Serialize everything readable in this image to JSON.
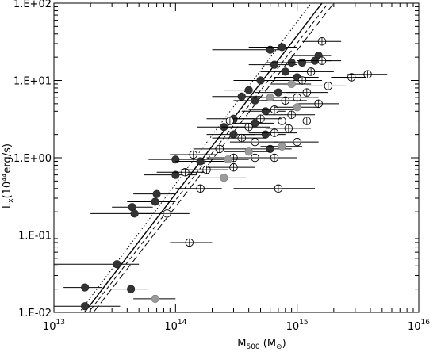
{
  "chart_data": {
    "type": "scatter",
    "x_scale": "log",
    "y_scale": "log",
    "xlim": [
      10000000000000.0,
      1e+16
    ],
    "ylim": [
      0.01,
      100
    ],
    "grid": false,
    "xlabel_main": "M",
    "xlabel_sub": "500",
    "xlabel_unit": " (M",
    "xlabel_unit_sub": "⊙",
    "xlabel_close": ")",
    "ylabel_main": "L",
    "ylabel_sub": "x",
    "ylabel_unit": "(10",
    "ylabel_exp": "44",
    "ylabel_tail": "erg/s)",
    "x_ticks": [
      {
        "value": 10000000000000.0,
        "base": "10",
        "exp": "13"
      },
      {
        "value": 100000000000000.0,
        "base": "10",
        "exp": "14"
      },
      {
        "value": 1000000000000000.0,
        "base": "10",
        "exp": "15"
      },
      {
        "value": 1e+16,
        "base": "10",
        "exp": "16"
      }
    ],
    "y_ticks": [
      {
        "value": 100,
        "label": "1.E+02"
      },
      {
        "value": 10,
        "label": "1.E+01"
      },
      {
        "value": 1,
        "label": "1.E+00"
      },
      {
        "value": 0.1,
        "label": "1.E-01"
      },
      {
        "value": 0.01,
        "label": "1.E-02"
      }
    ],
    "series": [
      {
        "marker": "filled-dark",
        "color": "#333333",
        "points": [
          {
            "x": 600000000000000.0,
            "y": 25,
            "xlo": 200000000000000.0,
            "xhi": 750000000000000.0
          },
          {
            "x": 750000000000000.0,
            "y": 27,
            "xlo": 400000000000000.0,
            "xhi": 1000000000000000.0
          },
          {
            "x": 1500000000000000.0,
            "y": 21,
            "xlo": 900000000000000.0,
            "xhi": 1900000000000000.0
          },
          {
            "x": 650000000000000.0,
            "y": 16,
            "xlo": 400000000000000.0,
            "xhi": 1000000000000000.0
          },
          {
            "x": 900000000000000.0,
            "y": 17,
            "xlo": 550000000000000.0,
            "xhi": 1400000000000000.0
          },
          {
            "x": 1100000000000000.0,
            "y": 17,
            "xlo": 700000000000000.0,
            "xhi": 1500000000000000.0
          },
          {
            "x": 1400000000000000.0,
            "y": 18,
            "xlo": 1000000000000000.0,
            "xhi": 1900000000000000.0
          },
          {
            "x": 800000000000000.0,
            "y": 13,
            "xlo": 500000000000000.0,
            "xhi": 1200000000000000.0
          },
          {
            "x": 1000000000000000.0,
            "y": 11,
            "xlo": 650000000000000.0,
            "xhi": 1500000000000000.0
          },
          {
            "x": 500000000000000.0,
            "y": 10,
            "xlo": 300000000000000.0,
            "xhi": 700000000000000.0
          },
          {
            "x": 400000000000000.0,
            "y": 7.5,
            "xlo": 250000000000000.0,
            "xhi": 600000000000000.0
          },
          {
            "x": 350000000000000.0,
            "y": 6.2,
            "xlo": 200000000000000.0,
            "xhi": 500000000000000.0
          },
          {
            "x": 450000000000000.0,
            "y": 5.5,
            "xlo": 300000000000000.0,
            "xhi": 650000000000000.0
          },
          {
            "x": 700000000000000.0,
            "y": 7.0,
            "xlo": 450000000000000.0,
            "xhi": 1000000000000000.0
          },
          {
            "x": 550000000000000.0,
            "y": 4.0,
            "xlo": 350000000000000.0,
            "xhi": 800000000000000.0
          },
          {
            "x": 300000000000000.0,
            "y": 3.2,
            "xlo": 180000000000000.0,
            "xhi": 450000000000000.0
          },
          {
            "x": 450000000000000.0,
            "y": 2.8,
            "xlo": 280000000000000.0,
            "xhi": 650000000000000.0
          },
          {
            "x": 250000000000000.0,
            "y": 2.5,
            "xlo": 150000000000000.0,
            "xhi": 380000000000000.0
          },
          {
            "x": 300000000000000.0,
            "y": 2.0,
            "xlo": 180000000000000.0,
            "xhi": 450000000000000.0
          },
          {
            "x": 550000000000000.0,
            "y": 2.0,
            "xlo": 350000000000000.0,
            "xhi": 800000000000000.0
          },
          {
            "x": 600000000000000.0,
            "y": 1.3,
            "xlo": 350000000000000.0,
            "xhi": 900000000000000.0
          },
          {
            "x": 100000000000000.0,
            "y": 0.95,
            "xlo": 60000000000000.0,
            "xhi": 150000000000000.0
          },
          {
            "x": 160000000000000.0,
            "y": 0.9,
            "xlo": 100000000000000.0,
            "xhi": 250000000000000.0
          },
          {
            "x": 100000000000000.0,
            "y": 0.6,
            "xlo": 55000000000000.0,
            "xhi": 150000000000000.0
          },
          {
            "x": 70000000000000.0,
            "y": 0.34,
            "xlo": 45000000000000.0,
            "xhi": 100000000000000.0
          },
          {
            "x": 68000000000000.0,
            "y": 0.27,
            "xlo": 40000000000000.0,
            "xhi": 100000000000000.0
          },
          {
            "x": 44000000000000.0,
            "y": 0.23,
            "xlo": 30000000000000.0,
            "xhi": 65000000000000.0
          },
          {
            "x": 46000000000000.0,
            "y": 0.19,
            "xlo": 20000000000000.0,
            "xhi": 65000000000000.0
          },
          {
            "x": 33000000000000.0,
            "y": 0.042,
            "xlo": 10000000000000.0,
            "xhi": 50000000000000.0
          },
          {
            "x": 18000000000000.0,
            "y": 0.021,
            "xlo": 12000000000000.0,
            "xhi": 25000000000000.0
          },
          {
            "x": 43000000000000.0,
            "y": 0.02,
            "xlo": 30000000000000.0,
            "xhi": 60000000000000.0
          },
          {
            "x": 18000000000000.0,
            "y": 0.012,
            "xlo": 10000000000000.0,
            "xhi": 35000000000000.0
          }
        ]
      },
      {
        "marker": "open-cross",
        "color": "#000000",
        "points": [
          {
            "x": 1600000000000000.0,
            "y": 32,
            "xlo": 1100000000000000.0,
            "xhi": 2300000000000000.0
          },
          {
            "x": 1600000000000000.0,
            "y": 18,
            "xlo": 1000000000000000.0,
            "xhi": 2300000000000000.0
          },
          {
            "x": 1300000000000000.0,
            "y": 13,
            "xlo": 850000000000000.0,
            "xhi": 2000000000000000.0
          },
          {
            "x": 2800000000000000.0,
            "y": 11,
            "xlo": 1900000000000000.0,
            "xhi": 4000000000000000.0
          },
          {
            "x": 3800000000000000.0,
            "y": 12,
            "xlo": 2600000000000000.0,
            "xhi": 5500000000000000.0
          },
          {
            "x": 1100000000000000.0,
            "y": 10,
            "xlo": 700000000000000.0,
            "xhi": 1600000000000000.0
          },
          {
            "x": 1800000000000000.0,
            "y": 8.5,
            "xlo": 1200000000000000.0,
            "xhi": 2500000000000000.0
          },
          {
            "x": 1200000000000000.0,
            "y": 7.0,
            "xlo": 800000000000000.0,
            "xhi": 1800000000000000.0
          },
          {
            "x": 1000000000000000.0,
            "y": 6.0,
            "xlo": 650000000000000.0,
            "xhi": 1500000000000000.0
          },
          {
            "x": 1500000000000000.0,
            "y": 5.0,
            "xlo": 1000000000000000.0,
            "xhi": 2200000000000000.0
          },
          {
            "x": 800000000000000.0,
            "y": 5.5,
            "xlo": 500000000000000.0,
            "xhi": 1200000000000000.0
          },
          {
            "x": 650000000000000.0,
            "y": 4.2,
            "xlo": 400000000000000.0,
            "xhi": 1000000000000000.0
          },
          {
            "x": 900000000000000.0,
            "y": 3.6,
            "xlo": 550000000000000.0,
            "xhi": 1400000000000000.0
          },
          {
            "x": 1200000000000000.0,
            "y": 3.0,
            "xlo": 800000000000000.0,
            "xhi": 1800000000000000.0
          },
          {
            "x": 750000000000000.0,
            "y": 3.0,
            "xlo": 450000000000000.0,
            "xhi": 1200000000000000.0
          },
          {
            "x": 500000000000000.0,
            "y": 3.2,
            "xlo": 300000000000000.0,
            "xhi": 750000000000000.0
          },
          {
            "x": 280000000000000.0,
            "y": 3.0,
            "xlo": 160000000000000.0,
            "xhi": 450000000000000.0
          },
          {
            "x": 400000000000000.0,
            "y": 2.5,
            "xlo": 240000000000000.0,
            "xhi": 600000000000000.0
          },
          {
            "x": 850000000000000.0,
            "y": 2.4,
            "xlo": 550000000000000.0,
            "xhi": 1300000000000000.0
          },
          {
            "x": 650000000000000.0,
            "y": 2.1,
            "xlo": 400000000000000.0,
            "xhi": 1000000000000000.0
          },
          {
            "x": 350000000000000.0,
            "y": 1.8,
            "xlo": 200000000000000.0,
            "xhi": 550000000000000.0
          },
          {
            "x": 1000000000000000.0,
            "y": 1.6,
            "xlo": 650000000000000.0,
            "xhi": 1500000000000000.0
          },
          {
            "x": 450000000000000.0,
            "y": 1.6,
            "xlo": 280000000000000.0,
            "xhi": 700000000000000.0
          },
          {
            "x": 140000000000000.0,
            "y": 1.1,
            "xlo": 90000000000000.0,
            "xhi": 220000000000000.0
          },
          {
            "x": 230000000000000.0,
            "y": 1.3,
            "xlo": 140000000000000.0,
            "xhi": 350000000000000.0
          },
          {
            "x": 300000000000000.0,
            "y": 1.0,
            "xlo": 180000000000000.0,
            "xhi": 450000000000000.0
          },
          {
            "x": 450000000000000.0,
            "y": 1.0,
            "xlo": 280000000000000.0,
            "xhi": 700000000000000.0
          },
          {
            "x": 650000000000000.0,
            "y": 1.0,
            "xlo": 400000000000000.0,
            "xhi": 1000000000000000.0
          },
          {
            "x": 120000000000000.0,
            "y": 0.65,
            "xlo": 70000000000000.0,
            "xhi": 180000000000000.0
          },
          {
            "x": 180000000000000.0,
            "y": 0.7,
            "xlo": 110000000000000.0,
            "xhi": 270000000000000.0
          },
          {
            "x": 300000000000000.0,
            "y": 0.75,
            "xlo": 180000000000000.0,
            "xhi": 450000000000000.0
          },
          {
            "x": 160000000000000.0,
            "y": 0.4,
            "xlo": 100000000000000.0,
            "xhi": 240000000000000.0
          },
          {
            "x": 700000000000000.0,
            "y": 0.4,
            "xlo": 300000000000000.0,
            "xhi": 1400000000000000.0
          },
          {
            "x": 85000000000000.0,
            "y": 0.19,
            "xlo": 50000000000000.0,
            "xhi": 130000000000000.0
          },
          {
            "x": 130000000000000.0,
            "y": 0.08,
            "xlo": 90000000000000.0,
            "xhi": 200000000000000.0
          }
        ]
      },
      {
        "marker": "filled-gray",
        "color": "#9a9a9a",
        "points": [
          {
            "x": 900000000000000.0,
            "y": 9.0,
            "xlo": 600000000000000.0,
            "xhi": 1300000000000000.0
          },
          {
            "x": 600000000000000.0,
            "y": 6.0,
            "xlo": 400000000000000.0,
            "xhi": 900000000000000.0
          },
          {
            "x": 1000000000000000.0,
            "y": 4.5,
            "xlo": 650000000000000.0,
            "xhi": 1500000000000000.0
          },
          {
            "x": 750000000000000.0,
            "y": 1.4,
            "xlo": 500000000000000.0,
            "xhi": 1100000000000000.0
          },
          {
            "x": 400000000000000.0,
            "y": 1.2,
            "xlo": 250000000000000.0,
            "xhi": 600000000000000.0
          },
          {
            "x": 270000000000000.0,
            "y": 0.95,
            "xlo": 160000000000000.0,
            "xhi": 400000000000000.0
          },
          {
            "x": 250000000000000.0,
            "y": 0.55,
            "xlo": 150000000000000.0,
            "xhi": 380000000000000.0
          },
          {
            "x": 68000000000000.0,
            "y": 0.015,
            "xlo": 45000000000000.0,
            "xhi": 100000000000000.0
          }
        ]
      }
    ],
    "fit_lines": [
      {
        "style": "solid",
        "x1": 15000000000000.0,
        "y1": 0.007,
        "x2": 1600000000000000.0,
        "y2": 100
      },
      {
        "style": "dotted",
        "x1": 15000000000000.0,
        "y1": 0.0085,
        "x2": 1300000000000000.0,
        "y2": 100
      },
      {
        "style": "dashed",
        "x1": 15000000000000.0,
        "y1": 0.006,
        "x2": 1800000000000000.0,
        "y2": 100
      },
      {
        "style": "longdash",
        "x1": 15000000000000.0,
        "y1": 0.005,
        "x2": 2000000000000000.0,
        "y2": 100
      }
    ]
  }
}
